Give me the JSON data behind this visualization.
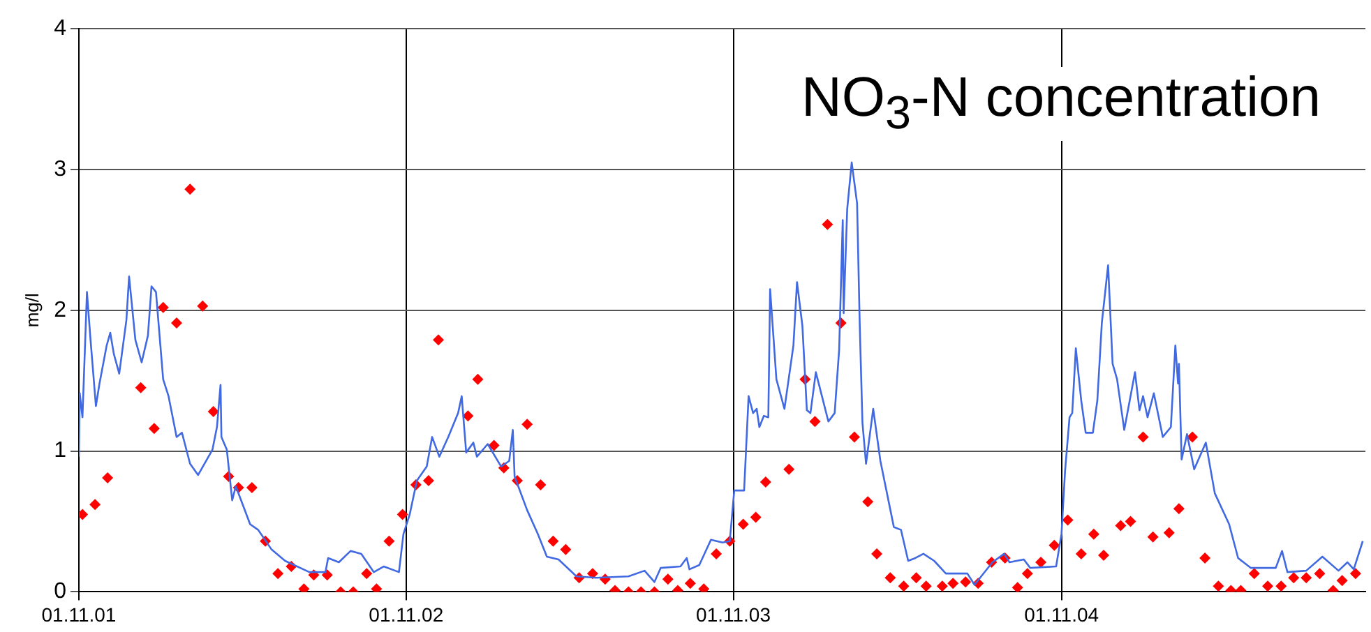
{
  "chart_data": {
    "type": "line",
    "title": "NO$_{3}$-N concentration",
    "ylabel": "mg/l",
    "xlim": [
      "2001-11-01",
      "2005-10-06"
    ],
    "xticks": [
      {
        "value": "2001-11-01",
        "label": "01.11.01"
      },
      {
        "value": "2002-11-01",
        "label": "01.11.02"
      },
      {
        "value": "2003-11-01",
        "label": "01.11.03"
      },
      {
        "value": "2004-11-01",
        "label": "01.11.04"
      }
    ],
    "ylim": [
      0,
      4
    ],
    "yticks": [
      0,
      1,
      2,
      3,
      4
    ],
    "grid": true,
    "legend": false,
    "series": [
      {
        "color": "#4169e1",
        "marker": "none",
        "line_style": "solid",
        "x": [
          "2001-11-01",
          "2001-11-02",
          "2001-11-05",
          "2001-11-10",
          "2001-11-14",
          "2001-11-20",
          "2001-11-24",
          "2001-12-02",
          "2001-12-06",
          "2001-12-10",
          "2001-12-16",
          "2001-12-24",
          "2001-12-27",
          "2002-01-03",
          "2002-01-10",
          "2002-01-17",
          "2002-01-21",
          "2002-01-26",
          "2002-02-03",
          "2002-02-09",
          "2002-02-18",
          "2002-02-24",
          "2002-03-05",
          "2002-03-14",
          "2002-03-30",
          "2002-04-04",
          "2002-04-08",
          "2002-04-09",
          "2002-04-15",
          "2002-04-21",
          "2002-04-25",
          "2002-05-11",
          "2002-05-20",
          "2002-06-04",
          "2002-06-19",
          "2002-07-16",
          "2002-08-03",
          "2002-08-06",
          "2002-08-18",
          "2002-08-31",
          "2002-09-12",
          "2002-09-26",
          "2002-10-07",
          "2002-10-24",
          "2002-10-29",
          "2002-11-05",
          "2002-11-13",
          "2002-11-24",
          "2002-11-30",
          "2002-12-08",
          "2002-12-18",
          "2002-12-29",
          "2003-01-02",
          "2003-01-07",
          "2003-01-15",
          "2003-01-19",
          "2003-01-31",
          "2003-02-15",
          "2003-02-24",
          "2003-02-28",
          "2003-03-02",
          "2003-03-16",
          "2003-03-28",
          "2003-04-07",
          "2003-04-20",
          "2003-05-10",
          "2003-06-01",
          "2003-07-07",
          "2003-07-25",
          "2003-08-05",
          "2003-08-12",
          "2003-09-03",
          "2003-09-10",
          "2003-09-13",
          "2003-09-24",
          "2003-10-07",
          "2003-10-20",
          "2003-10-28",
          "2003-11-02",
          "2003-11-13",
          "2003-11-18",
          "2003-11-23",
          "2003-11-27",
          "2003-11-30",
          "2003-12-05",
          "2003-12-10",
          "2003-12-12",
          "2003-12-19",
          "2003-12-28",
          "2004-01-07",
          "2004-01-11",
          "2004-01-17",
          "2004-01-22",
          "2004-01-26",
          "2004-02-01",
          "2004-02-07",
          "2004-02-15",
          "2004-02-22",
          "2004-02-27",
          "2004-03-02",
          "2004-03-03",
          "2004-03-07",
          "2004-03-12",
          "2004-03-18",
          "2004-03-21",
          "2004-03-24",
          "2004-03-28",
          "2004-04-05",
          "2004-04-13",
          "2004-04-28",
          "2004-05-06",
          "2004-05-14",
          "2004-05-22",
          "2004-05-31",
          "2004-06-12",
          "2004-06-25",
          "2004-07-19",
          "2004-07-27",
          "2004-08-16",
          "2004-08-29",
          "2004-09-04",
          "2004-09-20",
          "2004-09-27",
          "2004-10-26",
          "2004-11-01",
          "2004-11-05",
          "2004-11-10",
          "2004-11-13",
          "2004-11-17",
          "2004-11-23",
          "2004-11-28",
          "2004-12-06",
          "2004-12-11",
          "2004-12-16",
          "2004-12-23",
          "2004-12-28",
          "2005-01-02",
          "2005-01-10",
          "2005-01-22",
          "2005-01-27",
          "2005-01-31",
          "2005-02-05",
          "2005-02-12",
          "2005-02-22",
          "2005-03-03",
          "2005-03-08",
          "2005-03-11",
          "2005-03-12",
          "2005-03-15",
          "2005-03-21",
          "2005-03-29",
          "2005-04-11",
          "2005-04-21",
          "2005-05-07",
          "2005-05-17",
          "2005-05-31",
          "2005-06-28",
          "2005-07-05",
          "2005-07-11",
          "2005-08-01",
          "2005-08-19",
          "2005-09-06",
          "2005-09-16",
          "2005-09-23",
          "2005-10-03"
        ],
        "values": [
          0.96,
          1.41,
          1.24,
          2.13,
          1.79,
          1.32,
          1.48,
          1.75,
          1.84,
          1.69,
          1.55,
          1.93,
          2.24,
          1.79,
          1.63,
          1.82,
          2.17,
          2.13,
          1.51,
          1.39,
          1.1,
          1.13,
          0.91,
          0.83,
          1.01,
          1.17,
          1.47,
          1.1,
          1.01,
          0.65,
          0.75,
          0.48,
          0.44,
          0.3,
          0.22,
          0.14,
          0.14,
          0.24,
          0.21,
          0.29,
          0.27,
          0.14,
          0.18,
          0.14,
          0.41,
          0.55,
          0.79,
          0.89,
          1.1,
          0.96,
          1.1,
          1.27,
          1.39,
          0.99,
          1.06,
          0.96,
          1.05,
          0.89,
          0.93,
          1.15,
          0.82,
          0.58,
          0.41,
          0.25,
          0.23,
          0.11,
          0.1,
          0.11,
          0.15,
          0.07,
          0.17,
          0.18,
          0.24,
          0.16,
          0.19,
          0.37,
          0.35,
          0.36,
          0.72,
          0.72,
          1.39,
          1.27,
          1.3,
          1.17,
          1.25,
          1.24,
          2.15,
          1.51,
          1.3,
          1.75,
          2.2,
          1.89,
          1.29,
          1.27,
          1.56,
          1.41,
          1.21,
          1.27,
          1.72,
          2.64,
          1.98,
          2.72,
          3.05,
          2.76,
          1.89,
          1.2,
          0.91,
          1.3,
          0.93,
          0.46,
          0.44,
          0.22,
          0.24,
          0.27,
          0.22,
          0.13,
          0.13,
          0.05,
          0.21,
          0.27,
          0.21,
          0.23,
          0.17,
          0.18,
          0.41,
          0.86,
          1.24,
          1.27,
          1.73,
          1.36,
          1.13,
          1.13,
          1.36,
          1.91,
          2.32,
          1.62,
          1.51,
          1.15,
          1.56,
          1.29,
          1.39,
          1.24,
          1.41,
          1.1,
          1.17,
          1.75,
          1.48,
          1.62,
          0.94,
          1.12,
          0.87,
          1.06,
          0.7,
          0.48,
          0.24,
          0.17,
          0.17,
          0.29,
          0.14,
          0.15,
          0.25,
          0.15,
          0.21,
          0.16,
          0.36
        ]
      },
      {
        "type": "scatter",
        "color": "#ff0000",
        "marker": "diamond",
        "x": [
          "2001-11-05",
          "2001-11-19",
          "2001-12-03",
          "2002-01-09",
          "2002-01-24",
          "2002-02-03",
          "2002-02-18",
          "2002-03-05",
          "2002-03-19",
          "2002-03-31",
          "2002-04-17",
          "2002-04-28",
          "2002-05-13",
          "2002-05-28",
          "2002-06-11",
          "2002-06-26",
          "2002-07-10",
          "2002-07-21",
          "2002-08-05",
          "2002-08-20",
          "2002-09-03",
          "2002-09-18",
          "2002-09-29",
          "2002-10-13",
          "2002-10-28",
          "2002-11-12",
          "2002-11-26",
          "2002-12-07",
          "2003-01-09",
          "2003-01-20",
          "2003-02-07",
          "2003-02-18",
          "2003-03-05",
          "2003-03-16",
          "2003-03-31",
          "2003-04-14",
          "2003-04-28",
          "2003-05-13",
          "2003-05-28",
          "2003-06-11",
          "2003-06-22",
          "2003-07-07",
          "2003-07-21",
          "2003-08-05",
          "2003-08-20",
          "2003-08-31",
          "2003-09-14",
          "2003-09-29",
          "2003-10-13",
          "2003-10-28",
          "2003-11-12",
          "2003-11-26",
          "2003-12-07",
          "2004-01-02",
          "2004-01-20",
          "2004-01-31",
          "2004-02-14",
          "2004-02-29",
          "2004-03-15",
          "2004-03-30",
          "2004-04-09",
          "2004-04-24",
          "2004-05-09",
          "2004-05-23",
          "2004-06-03",
          "2004-06-21",
          "2004-07-03",
          "2004-07-17",
          "2004-07-31",
          "2004-08-15",
          "2004-08-30",
          "2004-09-13",
          "2004-09-24",
          "2004-10-09",
          "2004-10-24",
          "2004-11-08",
          "2004-11-23",
          "2004-12-07",
          "2004-12-18",
          "2005-01-06",
          "2005-01-17",
          "2005-01-31",
          "2005-02-11",
          "2005-03-01",
          "2005-03-12",
          "2005-03-27",
          "2005-04-10",
          "2005-04-25",
          "2005-05-09",
          "2005-05-20",
          "2005-06-04",
          "2005-06-19",
          "2005-07-04",
          "2005-07-18",
          "2005-08-01",
          "2005-08-16",
          "2005-08-31",
          "2005-09-10",
          "2005-09-25"
        ],
        "values": [
          0.55,
          0.62,
          0.81,
          1.45,
          1.16,
          2.02,
          1.91,
          2.86,
          2.03,
          1.28,
          0.82,
          0.74,
          0.74,
          0.36,
          0.13,
          0.18,
          0.02,
          0.12,
          0.12,
          0,
          0,
          0.13,
          0.02,
          0.36,
          0.55,
          0.76,
          0.79,
          1.79,
          1.25,
          1.51,
          1.04,
          0.88,
          0.79,
          1.19,
          0.76,
          0.36,
          0.3,
          0.1,
          0.13,
          0.09,
          0.01,
          0,
          0,
          0,
          0.09,
          0.01,
          0.06,
          0.02,
          0.27,
          0.36,
          0.48,
          0.53,
          0.78,
          0.87,
          1.51,
          1.21,
          2.61,
          1.91,
          1.1,
          0.64,
          0.27,
          0.1,
          0.04,
          0.1,
          0.04,
          0.04,
          0.06,
          0.07,
          0.06,
          0.21,
          0.24,
          0.03,
          0.13,
          0.21,
          0.33,
          0.51,
          0.27,
          0.41,
          0.26,
          0.47,
          0.5,
          1.1,
          0.39,
          0.42,
          0.59,
          1.1,
          0.24,
          0.04,
          0.01,
          0.01,
          0.13,
          0.04,
          0.04,
          0.1,
          0.1,
          0.13,
          0.01,
          0.08,
          0.13
        ]
      }
    ]
  }
}
